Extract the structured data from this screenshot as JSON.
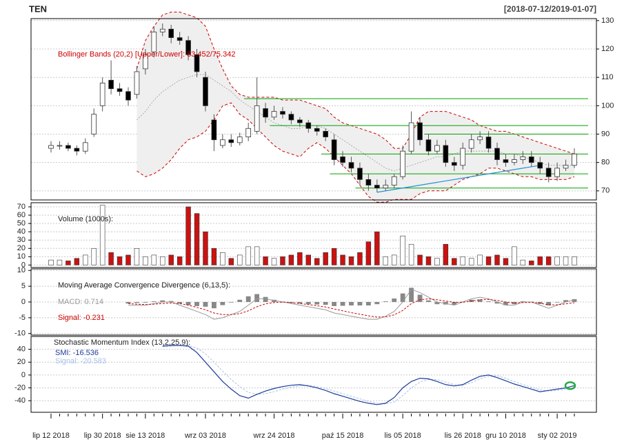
{
  "chart_data": {
    "type": "candlestick",
    "title": "TEN",
    "subtitle": "[2018-07-12/2019-01-07]",
    "categories": [
      "lip 12 2018",
      null,
      null,
      null,
      null,
      null,
      "lip 30 2018",
      null,
      null,
      null,
      null,
      "sie 13 2018",
      null,
      null,
      null,
      null,
      null,
      null,
      "wrz 03 2018",
      null,
      null,
      null,
      null,
      null,
      null,
      null,
      "wrz 24 2018",
      null,
      null,
      null,
      null,
      null,
      null,
      null,
      "paź 15 2018",
      null,
      null,
      null,
      null,
      null,
      null,
      "lis 05 2018",
      null,
      null,
      null,
      null,
      null,
      null,
      "lis 26 2018",
      null,
      null,
      null,
      null,
      "gru 10 2018",
      null,
      null,
      null,
      null,
      null,
      "sty 02 2019",
      null,
      null
    ],
    "ylim": [
      66.8,
      130.7
    ],
    "yticks": [
      70,
      80,
      90,
      100,
      110,
      120,
      130
    ],
    "grid": true,
    "up_color": "#ffffff",
    "down_color": "#000000",
    "ohlc": {
      "open": [
        85,
        86,
        86,
        85,
        84,
        90,
        100,
        109,
        106,
        105,
        104,
        113,
        119,
        126,
        127,
        124,
        123,
        118,
        110,
        95,
        86,
        88,
        87,
        89,
        91,
        99,
        96,
        98,
        97,
        95,
        94,
        92,
        91,
        88,
        82,
        80,
        78,
        74,
        72,
        71,
        72,
        75,
        84,
        94,
        88,
        84,
        86,
        80,
        79,
        85,
        88,
        89,
        85,
        81,
        80,
        81,
        82,
        80,
        78,
        75,
        78,
        79
      ],
      "high": [
        87.5,
        87.5,
        87,
        86,
        88.5,
        99,
        110,
        116,
        108,
        106.5,
        114,
        120,
        128,
        129,
        128.5,
        126,
        124.5,
        120,
        112,
        97,
        90,
        90,
        90.5,
        94,
        110,
        101,
        100,
        99.5,
        98,
        96,
        95,
        93,
        92,
        90,
        84,
        82,
        80,
        76,
        74,
        74,
        76,
        86,
        98,
        96,
        90,
        88,
        88,
        82,
        87,
        90,
        91,
        91,
        87,
        83,
        83,
        84,
        84,
        82,
        80,
        80,
        81,
        85
      ],
      "low": [
        83.5,
        84.5,
        84,
        82.5,
        83,
        89,
        98,
        104,
        103.5,
        100,
        102.5,
        111,
        117,
        124.5,
        122,
        121.5,
        116,
        110,
        98,
        84,
        85,
        85.5,
        86,
        87.5,
        90,
        94,
        95,
        95.5,
        93.5,
        92.5,
        90.5,
        89.5,
        87.5,
        79,
        78.5,
        76.5,
        72,
        70,
        69.5,
        70,
        71,
        74,
        83,
        86,
        82.5,
        83,
        78.5,
        77,
        77.5,
        83.5,
        86.5,
        83.5,
        79,
        78.5,
        79,
        79.5,
        78.5,
        76,
        73,
        73.5,
        77,
        78
      ],
      "close": [
        86,
        86,
        85,
        84,
        87,
        97,
        108,
        106,
        105,
        102,
        112,
        118,
        126,
        127,
        124,
        123,
        118,
        112,
        100,
        88,
        88,
        87,
        89,
        92,
        100,
        96,
        98,
        97,
        95,
        94,
        92,
        91,
        89,
        81,
        80,
        78,
        74,
        72,
        71,
        72,
        75,
        84,
        94,
        88,
        84,
        86,
        80,
        79,
        85,
        88,
        89,
        85,
        81,
        80,
        81,
        82,
        80,
        78,
        75,
        78,
        79,
        83
      ]
    },
    "bollinger": {
      "label": "Bollinger Bands (20,2) [Upper/Lower]: 83.452/75.342",
      "color": "#cc0000",
      "upper": [
        null,
        null,
        null,
        null,
        null,
        null,
        null,
        null,
        null,
        null,
        113,
        123,
        128,
        132,
        133,
        133,
        132,
        131,
        128,
        120,
        113,
        107,
        104,
        103,
        103,
        103,
        103,
        102,
        102,
        102,
        101,
        100,
        99,
        96,
        94,
        93,
        92,
        91,
        90,
        88,
        85,
        85,
        90,
        96,
        98,
        98,
        98,
        97,
        96,
        95,
        93,
        92,
        91,
        91,
        90,
        89,
        88,
        87,
        86,
        85,
        84,
        83
      ],
      "middle": [
        null,
        null,
        null,
        null,
        null,
        null,
        null,
        null,
        null,
        null,
        95,
        98,
        102,
        105,
        107,
        109,
        110,
        111,
        111,
        109,
        107,
        105,
        102,
        100,
        98,
        96,
        94,
        93,
        92,
        92,
        93,
        93,
        92,
        90,
        88,
        86,
        84,
        82,
        80,
        78,
        77,
        78,
        79,
        80,
        81,
        82,
        82,
        83,
        84,
        84,
        84,
        84,
        84,
        83,
        83,
        82,
        81,
        80,
        79,
        79,
        79,
        79
      ],
      "lower": [
        null,
        null,
        null,
        null,
        null,
        null,
        null,
        null,
        null,
        null,
        77,
        75,
        76,
        78,
        81,
        85,
        88,
        89,
        91,
        95,
        100,
        101,
        97,
        95,
        92,
        89,
        86,
        84,
        83,
        82,
        85,
        87,
        85,
        82,
        79,
        76,
        72,
        68,
        66,
        66,
        67,
        67,
        67,
        69,
        70,
        70,
        70,
        72,
        74,
        75,
        76,
        78,
        78,
        77,
        76,
        75,
        75,
        74,
        74,
        74,
        74,
        75
      ]
    },
    "level_color": "#00a000",
    "levels": [
      {
        "value": 102.5,
        "from": 23
      },
      {
        "value": 93,
        "from": 26
      },
      {
        "value": 90,
        "from": 44
      },
      {
        "value": 83,
        "from": 32
      },
      {
        "value": 76,
        "from": 33
      },
      {
        "value": 71,
        "from": 36
      }
    ],
    "trend": {
      "x": [
        38,
        57
      ],
      "values": [
        69.5,
        79
      ],
      "color": "#1f8fd6"
    },
    "volume": {
      "label": "Volume (1000s):",
      "up_color": "#ffffff",
      "down_color": "#cc1111",
      "ylim": [
        -3,
        75
      ],
      "yticks": [
        0,
        10,
        20,
        30,
        40,
        50,
        60,
        70
      ],
      "values": [
        6,
        6,
        5,
        8,
        12,
        20,
        72,
        15,
        10,
        12,
        20,
        10,
        12,
        10,
        12,
        10,
        70,
        62,
        40,
        20,
        15,
        8,
        12,
        22,
        22,
        10,
        8,
        10,
        12,
        15,
        12,
        8,
        15,
        20,
        12,
        10,
        15,
        28,
        40,
        10,
        12,
        35,
        25,
        12,
        10,
        8,
        25,
        8,
        10,
        8,
        12,
        10,
        12,
        8,
        22,
        6,
        5,
        10,
        10,
        10,
        10,
        10
      ]
    },
    "macd": {
      "label": "Moving Average Convergence Divergence (6,13,5):",
      "macd_label": "MACD: 0.714",
      "signal_label": "Signal: -0.231",
      "macd_color": "#999999",
      "signal_color": "#cc0000",
      "hist_color": "#888888",
      "ylim": [
        -10.5,
        10.5
      ],
      "yticks": [
        -10,
        -5,
        0,
        5,
        10
      ],
      "macd": [
        null,
        null,
        null,
        null,
        null,
        null,
        null,
        null,
        null,
        -1,
        -1,
        -1,
        -0.5,
        0,
        0,
        -1,
        -2,
        -3,
        -4,
        -5.5,
        -5,
        -4,
        -3,
        -1,
        1,
        1,
        0.5,
        0,
        -0.5,
        -1,
        -1.5,
        -2,
        -2.5,
        -3.5,
        -4,
        -4.5,
        -5,
        -5.5,
        -5.5,
        -4.5,
        -3,
        0,
        4,
        3,
        1.5,
        0,
        -0.5,
        -1,
        0,
        1,
        1.5,
        1,
        0,
        -1,
        -1,
        0,
        0,
        -1,
        -2,
        -1,
        0,
        0.7
      ],
      "signal": [
        null,
        null,
        null,
        null,
        null,
        null,
        null,
        null,
        null,
        -0.5,
        -0.7,
        -0.8,
        -0.7,
        -0.5,
        -0.3,
        -0.5,
        -1,
        -1.7,
        -2.5,
        -3.5,
        -4,
        -4,
        -3.7,
        -2.8,
        -1.5,
        -0.6,
        -0.2,
        0,
        -0.2,
        -0.5,
        -0.8,
        -1.2,
        -1.6,
        -2.2,
        -2.8,
        -3.4,
        -3.9,
        -4.4,
        -4.8,
        -4.7,
        -4.1,
        -2.7,
        -0.5,
        0.7,
        1,
        0.7,
        0.3,
        -0.1,
        -0.1,
        0.3,
        0.7,
        0.8,
        0.5,
        0,
        -0.3,
        -0.2,
        -0.1,
        -0.4,
        -0.9,
        -0.9,
        -0.6,
        -0.23
      ],
      "histogram": [
        null,
        null,
        null,
        null,
        null,
        null,
        null,
        null,
        null,
        -0.5,
        -0.3,
        -0.2,
        0.2,
        0.5,
        0.3,
        -0.5,
        -1,
        -1.3,
        -1.5,
        -2,
        -1,
        0,
        0.7,
        1.8,
        2.5,
        1.6,
        0.7,
        0,
        -0.3,
        -0.5,
        -0.7,
        -0.8,
        -0.9,
        -1.3,
        -1.2,
        -1.1,
        -1.1,
        -1.1,
        -0.7,
        0.2,
        1.1,
        2.7,
        4.5,
        2.3,
        0.5,
        -0.7,
        -0.8,
        -0.9,
        0.1,
        0.7,
        0.8,
        0.2,
        -0.5,
        -1,
        -0.7,
        0.2,
        0.1,
        -0.6,
        -1.1,
        -0.1,
        0.6,
        0.9
      ]
    },
    "smi": {
      "label": "Stochastic Momentum Index (13,2,25,9):",
      "smi_label": "SMI: -16.536",
      "signal_label": "Signal: -20.583",
      "smi_color": "#1a3a9a",
      "signal_color": "#a8c0e8",
      "marker_color": "#22aa44",
      "ylim": [
        -58,
        60
      ],
      "yticks": [
        -40,
        -20,
        0,
        20,
        40
      ],
      "smi": [
        null,
        null,
        null,
        null,
        null,
        null,
        null,
        null,
        null,
        null,
        null,
        null,
        null,
        45,
        46,
        46,
        45,
        35,
        20,
        5,
        -10,
        -22,
        -32,
        -36,
        -30,
        -25,
        -21,
        -18,
        -16,
        -15,
        -17,
        -20,
        -24,
        -29,
        -33,
        -37,
        -41,
        -44,
        -46,
        -44,
        -35,
        -20,
        -10,
        -5,
        -6,
        -10,
        -15,
        -17,
        -15,
        -8,
        -2,
        0,
        -4,
        -9,
        -14,
        -18,
        -22,
        -26,
        -24,
        -22,
        -20,
        -16.5
      ],
      "signal": [
        null,
        null,
        null,
        null,
        null,
        null,
        null,
        null,
        null,
        null,
        null,
        null,
        null,
        44,
        45,
        46,
        46,
        42,
        33,
        20,
        6,
        -7,
        -18,
        -27,
        -30,
        -29,
        -26,
        -22,
        -19,
        -17,
        -16,
        -18,
        -21,
        -25,
        -29,
        -33,
        -37,
        -41,
        -44,
        -45,
        -42,
        -32,
        -20,
        -11,
        -7,
        -7,
        -11,
        -15,
        -16,
        -12,
        -6,
        -2,
        -1,
        -5,
        -10,
        -15,
        -19,
        -23,
        -25,
        -24,
        -22,
        -20.6
      ]
    }
  }
}
